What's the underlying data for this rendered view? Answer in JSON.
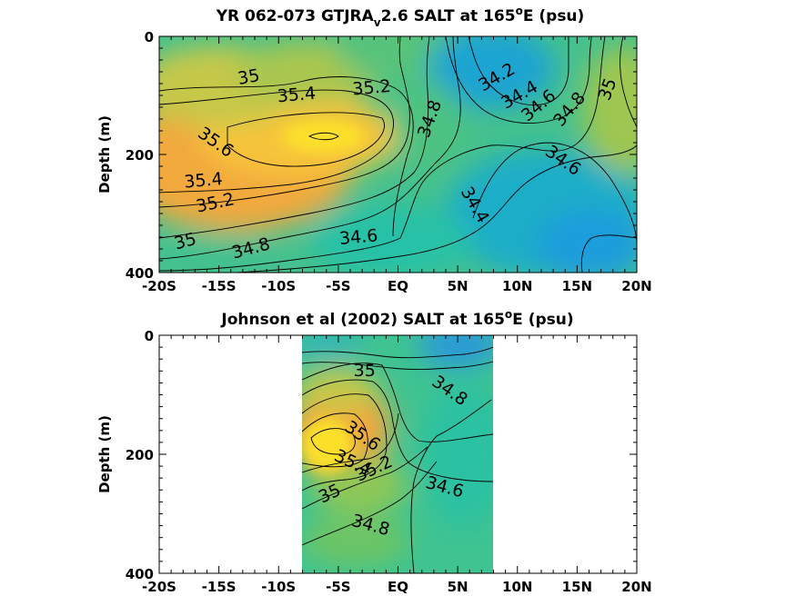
{
  "chart_data": [
    {
      "type": "heatmap",
      "title_main": "YR 062-073 GTJRA",
      "title_sub": "v",
      "title_rest": "2.6 SALT at 165",
      "title_sup": "o",
      "title_tail": "E (psu)",
      "ylabel": "Depth (m)",
      "xlim": [
        -20,
        20
      ],
      "ylim": [
        400,
        0
      ],
      "xticks": [
        {
          "v": -20,
          "label": "-20S"
        },
        {
          "v": -15,
          "label": "-15S"
        },
        {
          "v": -10,
          "label": "-10S"
        },
        {
          "v": -5,
          "label": "-5S"
        },
        {
          "v": 0,
          "label": "EQ"
        },
        {
          "v": 5,
          "label": "5N"
        },
        {
          "v": 10,
          "label": "10N"
        },
        {
          "v": 15,
          "label": "15N"
        },
        {
          "v": 20,
          "label": "20N"
        }
      ],
      "yticks": [
        {
          "v": 0,
          "label": "0"
        },
        {
          "v": 200,
          "label": "200"
        },
        {
          "v": 400,
          "label": "400"
        }
      ],
      "data_extent": [
        -20,
        20
      ],
      "contour_labels": [
        {
          "text": "35",
          "lat": -12.5,
          "depth": 70,
          "rot": -10
        },
        {
          "text": "35.4",
          "lat": -8.5,
          "depth": 100,
          "rot": -5
        },
        {
          "text": "35.2",
          "lat": -2.2,
          "depth": 88,
          "rot": -5
        },
        {
          "text": "35.6",
          "lat": -15.3,
          "depth": 180,
          "rot": 35
        },
        {
          "text": "35.4",
          "lat": -16.3,
          "depth": 245,
          "rot": -5
        },
        {
          "text": "35.2",
          "lat": -15.3,
          "depth": 283,
          "rot": -12
        },
        {
          "text": "35",
          "lat": -17.8,
          "depth": 348,
          "rot": -15
        },
        {
          "text": "34.8",
          "lat": -12.3,
          "depth": 360,
          "rot": -15
        },
        {
          "text": "34.6",
          "lat": -3.3,
          "depth": 341,
          "rot": -5
        },
        {
          "text": "34.8",
          "lat": 2.7,
          "depth": 140,
          "rot": -70
        },
        {
          "text": "34.2",
          "lat": 8.3,
          "depth": 70,
          "rot": -30
        },
        {
          "text": "34.4",
          "lat": 10.2,
          "depth": 100,
          "rot": -30
        },
        {
          "text": "34.6",
          "lat": 11.8,
          "depth": 118,
          "rot": -40
        },
        {
          "text": "34.8",
          "lat": 14.4,
          "depth": 124,
          "rot": -50
        },
        {
          "text": "35",
          "lat": 17.6,
          "depth": 90,
          "rot": -70
        },
        {
          "text": "34.6",
          "lat": 13.8,
          "depth": 211,
          "rot": 35
        },
        {
          "text": "34.4",
          "lat": 6.4,
          "depth": 286,
          "rot": 60
        }
      ]
    },
    {
      "type": "heatmap",
      "title_main": "Johnson et al (2002) SALT at 165",
      "title_sup": "o",
      "title_tail": "E (psu)",
      "ylabel": "Depth (m)",
      "xlim": [
        -20,
        20
      ],
      "ylim": [
        400,
        0
      ],
      "xticks": [
        {
          "v": -20,
          "label": "-20S"
        },
        {
          "v": -15,
          "label": "-15S"
        },
        {
          "v": -10,
          "label": "-10S"
        },
        {
          "v": -5,
          "label": "-5S"
        },
        {
          "v": 0,
          "label": "EQ"
        },
        {
          "v": 5,
          "label": "5N"
        },
        {
          "v": 10,
          "label": "10N"
        },
        {
          "v": 15,
          "label": "15N"
        },
        {
          "v": 20,
          "label": "20N"
        }
      ],
      "yticks": [
        {
          "v": 0,
          "label": "0"
        },
        {
          "v": 200,
          "label": "200"
        },
        {
          "v": 400,
          "label": "400"
        }
      ],
      "data_extent": [
        -8,
        8
      ],
      "contour_labels": [
        {
          "text": "35",
          "lat": -2.8,
          "depth": 60,
          "rot": 0
        },
        {
          "text": "34.8",
          "lat": 4.3,
          "depth": 94,
          "rot": 35
        },
        {
          "text": "35.6",
          "lat": -3.0,
          "depth": 170,
          "rot": 35
        },
        {
          "text": "35.4",
          "lat": -3.8,
          "depth": 215,
          "rot": 25
        },
        {
          "text": "35.2",
          "lat": -2.0,
          "depth": 225,
          "rot": -25
        },
        {
          "text": "34.6",
          "lat": 3.9,
          "depth": 256,
          "rot": 15
        },
        {
          "text": "35",
          "lat": -5.7,
          "depth": 267,
          "rot": -25
        },
        {
          "text": "34.8",
          "lat": -2.3,
          "depth": 320,
          "rot": 15
        }
      ]
    }
  ],
  "colors": {
    "salt_high": "#f9e02a",
    "salt_mid_high": "#f4b339",
    "salt_mid": "#7ec85e",
    "salt_low": "#26c2a6",
    "salt_lowest": "#1f96e0"
  }
}
